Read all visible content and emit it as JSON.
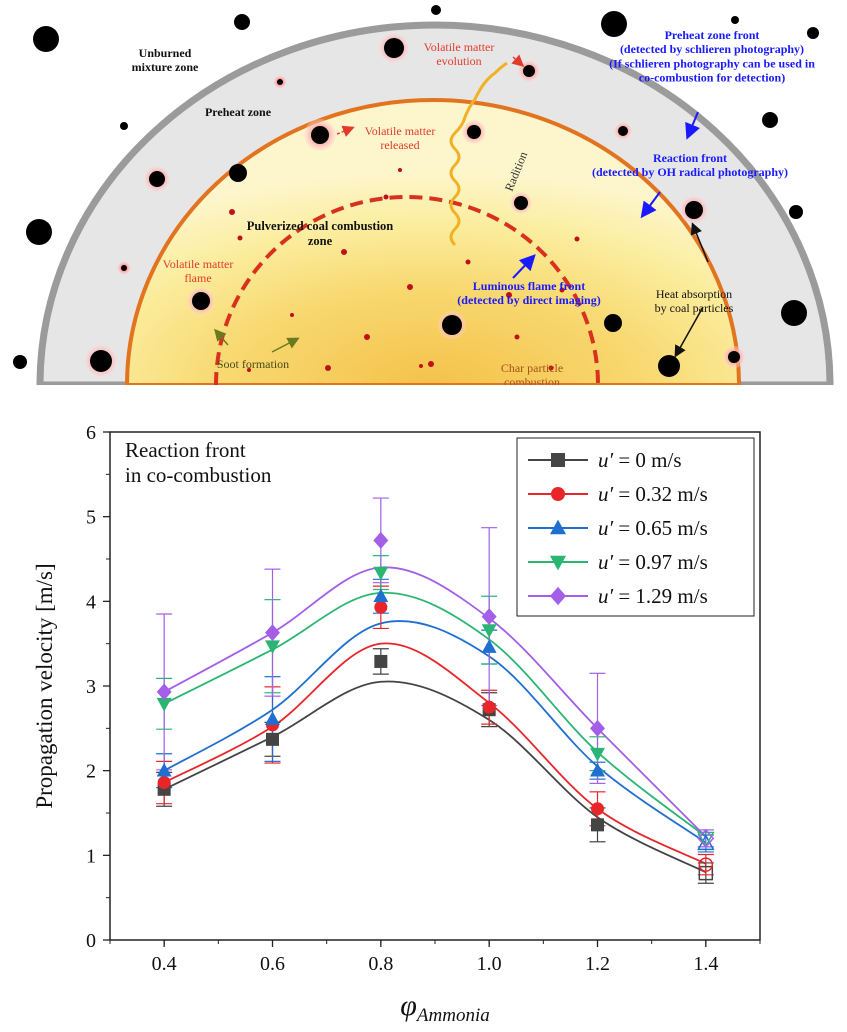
{
  "diagram": {
    "zones": {
      "unburned": "Unburned\nmixture zone",
      "preheat": "Preheat zone",
      "pulverized": "Pulverized coal combustion\nzone"
    },
    "labels": {
      "volatile_evolution": "Volatile matter\nevolution",
      "volatile_released": "Volatile matter\nreleased",
      "radiation": "Radition",
      "volatile_flame": "Volatile matter\nflame",
      "soot": "Soot formation",
      "char": "Char particle\ncombustion",
      "heat": "Heat absorption\nby coal particles",
      "preheat_front": "Preheat zone front\n(detected by schlieren photography)\n(If schlieren photography can be used in\nco-combustion for detection)",
      "reaction_front": "Reaction front\n(detected by OH radical photography)",
      "luminous_front": "Luminous flame front\n(detected by direct imaging)"
    },
    "colors": {
      "outer_ring": "#9b9b9b",
      "preheat_fill": "#e6e6e6",
      "reaction_ring": "#e2741f",
      "luminous_ring": "#d8321e",
      "blue_text": "#1a1aff",
      "red_text": "#e23b2e"
    }
  },
  "chart_data": {
    "type": "line",
    "annotation": "Reaction front\nin co-combustion",
    "ylabel": "Propagation velocity [m/s]",
    "xlabel_main": "φ",
    "xlabel_sub": "Ammonia",
    "x_ticks": [
      "0.4",
      "0.6",
      "0.8",
      "1.0",
      "1.2",
      "1.4"
    ],
    "y_ticks": [
      "0",
      "1",
      "2",
      "3",
      "4",
      "5",
      "6"
    ],
    "xlim": [
      0.3,
      1.5
    ],
    "ylim": [
      0,
      6
    ],
    "legend_position": "top-right",
    "x": [
      0.4,
      0.6,
      0.8,
      1.0,
      1.2,
      1.4
    ],
    "series": [
      {
        "name_prefix": "u′",
        "name_suffix": " = 0 m/s",
        "color": "#444444",
        "marker": "square",
        "values": [
          1.78,
          2.37,
          3.29,
          2.72,
          1.36,
          0.79
        ],
        "errors": [
          0.2,
          0.2,
          0.15,
          0.2,
          0.2,
          0.12
        ],
        "fit": [
          1.78,
          2.4,
          3.05,
          2.6,
          1.45,
          0.8
        ]
      },
      {
        "name_prefix": "u′",
        "name_suffix": " = 0.32 m/s",
        "color": "#e8262a",
        "marker": "circle",
        "values": [
          1.86,
          2.54,
          3.93,
          2.75,
          1.55,
          0.89
        ],
        "errors": [
          0.25,
          0.45,
          0.25,
          0.2,
          0.2,
          0.12
        ],
        "fit": [
          1.86,
          2.52,
          3.5,
          2.8,
          1.55,
          0.9
        ]
      },
      {
        "name_prefix": "u′",
        "name_suffix": " = 0.65 m/s",
        "color": "#1f6fd1",
        "marker": "triangle-up",
        "values": [
          2.0,
          2.61,
          4.06,
          3.46,
          2.0,
          1.14
        ],
        "errors": [
          0.2,
          0.5,
          0.2,
          0.2,
          0.1,
          0.1
        ],
        "fit": [
          2.0,
          2.72,
          3.74,
          3.35,
          2.05,
          1.15
        ]
      },
      {
        "name_prefix": "u′",
        "name_suffix": " = 0.97 m/s",
        "color": "#2bb573",
        "marker": "triangle-down",
        "values": [
          2.79,
          3.47,
          4.34,
          3.66,
          2.2,
          1.2
        ],
        "errors": [
          0.3,
          0.55,
          0.2,
          0.4,
          0.2,
          0.1
        ],
        "fit": [
          2.79,
          3.43,
          4.1,
          3.55,
          2.22,
          1.22
        ]
      },
      {
        "name_prefix": "u′",
        "name_suffix": " = 1.29 m/s",
        "color": "#a35fe8",
        "marker": "diamond",
        "values": [
          2.93,
          3.63,
          4.72,
          3.82,
          2.5,
          1.2
        ],
        "errors": [
          0.92,
          0.75,
          0.5,
          1.05,
          0.65,
          0.1
        ],
        "fit": [
          2.93,
          3.63,
          4.4,
          3.8,
          2.5,
          1.22
        ]
      }
    ]
  }
}
